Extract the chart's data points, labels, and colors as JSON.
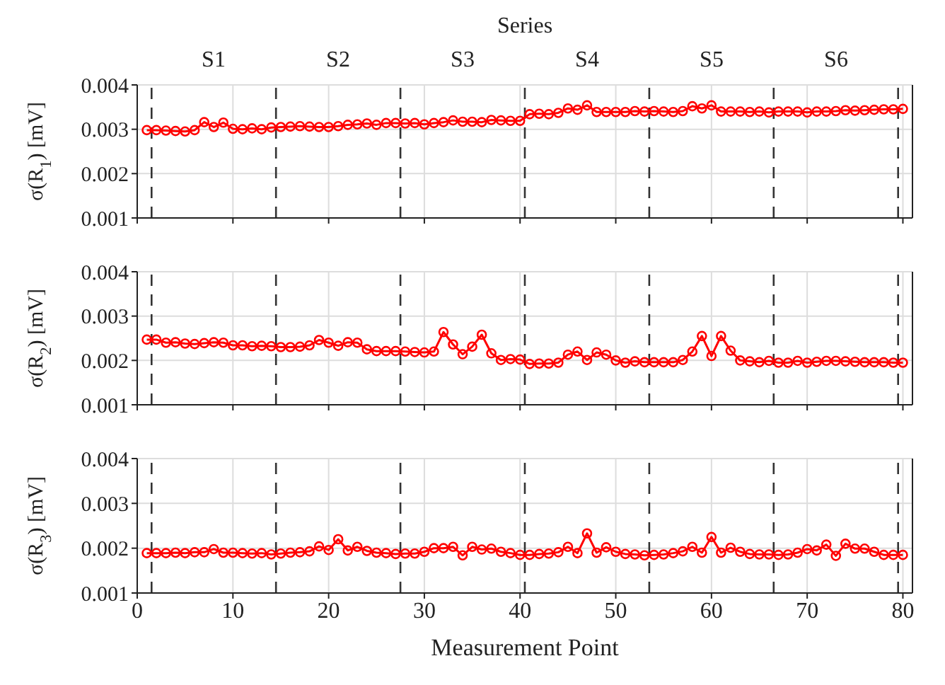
{
  "chart_data": [
    {
      "type": "line",
      "ylabel": "σ(R$_{1}$) [mV]",
      "x2label": "Series",
      "xlim": [
        0,
        81
      ],
      "xticks": [
        0,
        10,
        20,
        30,
        40,
        50,
        60,
        70,
        80
      ],
      "annotations": [
        "S1",
        "S2",
        "S3",
        "S4",
        "S5",
        "S6"
      ],
      "ylim": [
        0.001,
        0.004
      ],
      "yticks": [
        0.001,
        0.002,
        0.003,
        0.004
      ],
      "grid": true,
      "legend": false,
      "marker": "circle",
      "line_style": "solid",
      "tick_labels": "y",
      "x": [
        1,
        2,
        3,
        4,
        5,
        6,
        7,
        8,
        9,
        10,
        11,
        12,
        13,
        14,
        15,
        16,
        17,
        18,
        19,
        20,
        21,
        22,
        23,
        24,
        25,
        26,
        27,
        28,
        29,
        30,
        31,
        32,
        33,
        34,
        35,
        36,
        37,
        38,
        39,
        40,
        41,
        42,
        43,
        44,
        45,
        46,
        47,
        48,
        49,
        50,
        51,
        52,
        53,
        54,
        55,
        56,
        57,
        58,
        59,
        60,
        61,
        62,
        63,
        64,
        65,
        66,
        67,
        68,
        69,
        70,
        71,
        72,
        73,
        74,
        75,
        76,
        77,
        78,
        79,
        80
      ],
      "series": [
        {
          "color": "#ff0000",
          "values": [
            0.00298,
            0.00298,
            0.00297,
            0.00296,
            0.00295,
            0.00298,
            0.00316,
            0.00305,
            0.00315,
            0.00301,
            0.003,
            0.00302,
            0.003,
            0.00304,
            0.00305,
            0.00306,
            0.00307,
            0.00306,
            0.00305,
            0.00305,
            0.00307,
            0.0031,
            0.00311,
            0.00313,
            0.0031,
            0.00314,
            0.00314,
            0.00313,
            0.00314,
            0.00311,
            0.00314,
            0.00316,
            0.0032,
            0.00317,
            0.00317,
            0.00316,
            0.00321,
            0.0032,
            0.00319,
            0.00319,
            0.00334,
            0.00335,
            0.00334,
            0.00337,
            0.00347,
            0.00344,
            0.00354,
            0.00339,
            0.00339,
            0.00339,
            0.00339,
            0.00341,
            0.0034,
            0.00341,
            0.0034,
            0.00339,
            0.00341,
            0.00352,
            0.00347,
            0.00354,
            0.0034,
            0.0034,
            0.0034,
            0.00339,
            0.0034,
            0.00338,
            0.0034,
            0.0034,
            0.0034,
            0.00338,
            0.0034,
            0.0034,
            0.00341,
            0.00343,
            0.00342,
            0.00343,
            0.00344,
            0.00345,
            0.00345,
            0.00346
          ]
        }
      ],
      "ref_lines": [
        {
          "axis": "x",
          "value": 1.5,
          "color": "#333333",
          "line_style": "dashed"
        },
        {
          "axis": "x",
          "value": 14.5,
          "color": "#333333",
          "line_style": "dashed"
        },
        {
          "axis": "x",
          "value": 27.5,
          "color": "#333333",
          "line_style": "dashed"
        },
        {
          "axis": "x",
          "value": 40.5,
          "color": "#333333",
          "line_style": "dashed"
        },
        {
          "axis": "x",
          "value": 53.5,
          "color": "#333333",
          "line_style": "dashed"
        },
        {
          "axis": "x",
          "value": 66.5,
          "color": "#333333",
          "line_style": "dashed"
        },
        {
          "axis": "x",
          "value": 79.5,
          "color": "#333333",
          "line_style": "dashed"
        }
      ]
    },
    {
      "type": "line",
      "ylabel": "σ(R$_{2}$) [mV]",
      "xlim": [
        0,
        81
      ],
      "xticks": [
        0,
        10,
        20,
        30,
        40,
        50,
        60,
        70,
        80
      ],
      "ylim": [
        0.001,
        0.004
      ],
      "yticks": [
        0.001,
        0.002,
        0.003,
        0.004
      ],
      "grid": true,
      "legend": false,
      "marker": "circle",
      "line_style": "solid",
      "tick_labels": "y",
      "x": [
        1,
        2,
        3,
        4,
        5,
        6,
        7,
        8,
        9,
        10,
        11,
        12,
        13,
        14,
        15,
        16,
        17,
        18,
        19,
        20,
        21,
        22,
        23,
        24,
        25,
        26,
        27,
        28,
        29,
        30,
        31,
        32,
        33,
        34,
        35,
        36,
        37,
        38,
        39,
        40,
        41,
        42,
        43,
        44,
        45,
        46,
        47,
        48,
        49,
        50,
        51,
        52,
        53,
        54,
        55,
        56,
        57,
        58,
        59,
        60,
        61,
        62,
        63,
        64,
        65,
        66,
        67,
        68,
        69,
        70,
        71,
        72,
        73,
        74,
        75,
        76,
        77,
        78,
        79,
        80
      ],
      "series": [
        {
          "color": "#ff0000",
          "values": [
            0.00247,
            0.00247,
            0.0024,
            0.00241,
            0.00238,
            0.00237,
            0.00239,
            0.00241,
            0.0024,
            0.00234,
            0.00234,
            0.00232,
            0.00233,
            0.00232,
            0.0023,
            0.0023,
            0.00231,
            0.00234,
            0.00246,
            0.0024,
            0.00233,
            0.00241,
            0.0024,
            0.00225,
            0.00221,
            0.00221,
            0.00221,
            0.0022,
            0.00219,
            0.00218,
            0.0022,
            0.00264,
            0.00236,
            0.00214,
            0.00231,
            0.00258,
            0.00216,
            0.00201,
            0.00203,
            0.00202,
            0.00192,
            0.00193,
            0.00193,
            0.00195,
            0.00213,
            0.0022,
            0.00201,
            0.00218,
            0.00213,
            0.002,
            0.00195,
            0.00198,
            0.00196,
            0.00196,
            0.00196,
            0.00196,
            0.00201,
            0.0022,
            0.00255,
            0.0021,
            0.00255,
            0.00222,
            0.002,
            0.00198,
            0.00196,
            0.00199,
            0.00195,
            0.00195,
            0.00199,
            0.00195,
            0.00197,
            0.00199,
            0.00199,
            0.00198,
            0.00197,
            0.00196,
            0.00196,
            0.00196,
            0.00195,
            0.00195
          ]
        }
      ],
      "ref_lines": [
        {
          "axis": "x",
          "value": 1.5,
          "color": "#333333",
          "line_style": "dashed"
        },
        {
          "axis": "x",
          "value": 14.5,
          "color": "#333333",
          "line_style": "dashed"
        },
        {
          "axis": "x",
          "value": 27.5,
          "color": "#333333",
          "line_style": "dashed"
        },
        {
          "axis": "x",
          "value": 40.5,
          "color": "#333333",
          "line_style": "dashed"
        },
        {
          "axis": "x",
          "value": 53.5,
          "color": "#333333",
          "line_style": "dashed"
        },
        {
          "axis": "x",
          "value": 66.5,
          "color": "#333333",
          "line_style": "dashed"
        },
        {
          "axis": "x",
          "value": 79.5,
          "color": "#333333",
          "line_style": "dashed"
        }
      ]
    },
    {
      "type": "line",
      "ylabel": "σ(R$_{3}$) [mV]",
      "xlabel": "Measurement Point",
      "xlim": [
        0,
        81
      ],
      "xticks": [
        0,
        10,
        20,
        30,
        40,
        50,
        60,
        70,
        80
      ],
      "ylim": [
        0.001,
        0.004
      ],
      "yticks": [
        0.001,
        0.002,
        0.003,
        0.004
      ],
      "grid": true,
      "legend": false,
      "marker": "circle",
      "line_style": "solid",
      "x": [
        1,
        2,
        3,
        4,
        5,
        6,
        7,
        8,
        9,
        10,
        11,
        12,
        13,
        14,
        15,
        16,
        17,
        18,
        19,
        20,
        21,
        22,
        23,
        24,
        25,
        26,
        27,
        28,
        29,
        30,
        31,
        32,
        33,
        34,
        35,
        36,
        37,
        38,
        39,
        40,
        41,
        42,
        43,
        44,
        45,
        46,
        47,
        48,
        49,
        50,
        51,
        52,
        53,
        54,
        55,
        56,
        57,
        58,
        59,
        60,
        61,
        62,
        63,
        64,
        65,
        66,
        67,
        68,
        69,
        70,
        71,
        72,
        73,
        74,
        75,
        76,
        77,
        78,
        79,
        80
      ],
      "series": [
        {
          "color": "#ff0000",
          "values": [
            0.00189,
            0.00189,
            0.00189,
            0.0019,
            0.00189,
            0.00191,
            0.00191,
            0.00198,
            0.0019,
            0.0019,
            0.00189,
            0.00188,
            0.00189,
            0.00186,
            0.00188,
            0.0019,
            0.00191,
            0.00193,
            0.00204,
            0.00196,
            0.0022,
            0.00195,
            0.00203,
            0.00194,
            0.0019,
            0.00189,
            0.00187,
            0.00188,
            0.00188,
            0.00192,
            0.002,
            0.002,
            0.00203,
            0.00184,
            0.00203,
            0.00197,
            0.00199,
            0.00192,
            0.00189,
            0.00185,
            0.00185,
            0.00187,
            0.00188,
            0.00191,
            0.00203,
            0.00189,
            0.00233,
            0.0019,
            0.00202,
            0.00192,
            0.00187,
            0.00186,
            0.00184,
            0.00185,
            0.00186,
            0.00189,
            0.00193,
            0.00203,
            0.0019,
            0.00225,
            0.0019,
            0.00201,
            0.00192,
            0.00187,
            0.00186,
            0.00186,
            0.00185,
            0.00186,
            0.0019,
            0.00198,
            0.00195,
            0.00208,
            0.00183,
            0.0021,
            0.00199,
            0.00199,
            0.00192,
            0.00185,
            0.00185,
            0.00185
          ]
        }
      ],
      "ref_lines": [
        {
          "axis": "x",
          "value": 1.5,
          "color": "#333333",
          "line_style": "dashed"
        },
        {
          "axis": "x",
          "value": 14.5,
          "color": "#333333",
          "line_style": "dashed"
        },
        {
          "axis": "x",
          "value": 27.5,
          "color": "#333333",
          "line_style": "dashed"
        },
        {
          "axis": "x",
          "value": 40.5,
          "color": "#333333",
          "line_style": "dashed"
        },
        {
          "axis": "x",
          "value": 53.5,
          "color": "#333333",
          "line_style": "dashed"
        },
        {
          "axis": "x",
          "value": 66.5,
          "color": "#333333",
          "line_style": "dashed"
        },
        {
          "axis": "x",
          "value": 79.5,
          "color": "#333333",
          "line_style": "dashed"
        }
      ]
    }
  ]
}
